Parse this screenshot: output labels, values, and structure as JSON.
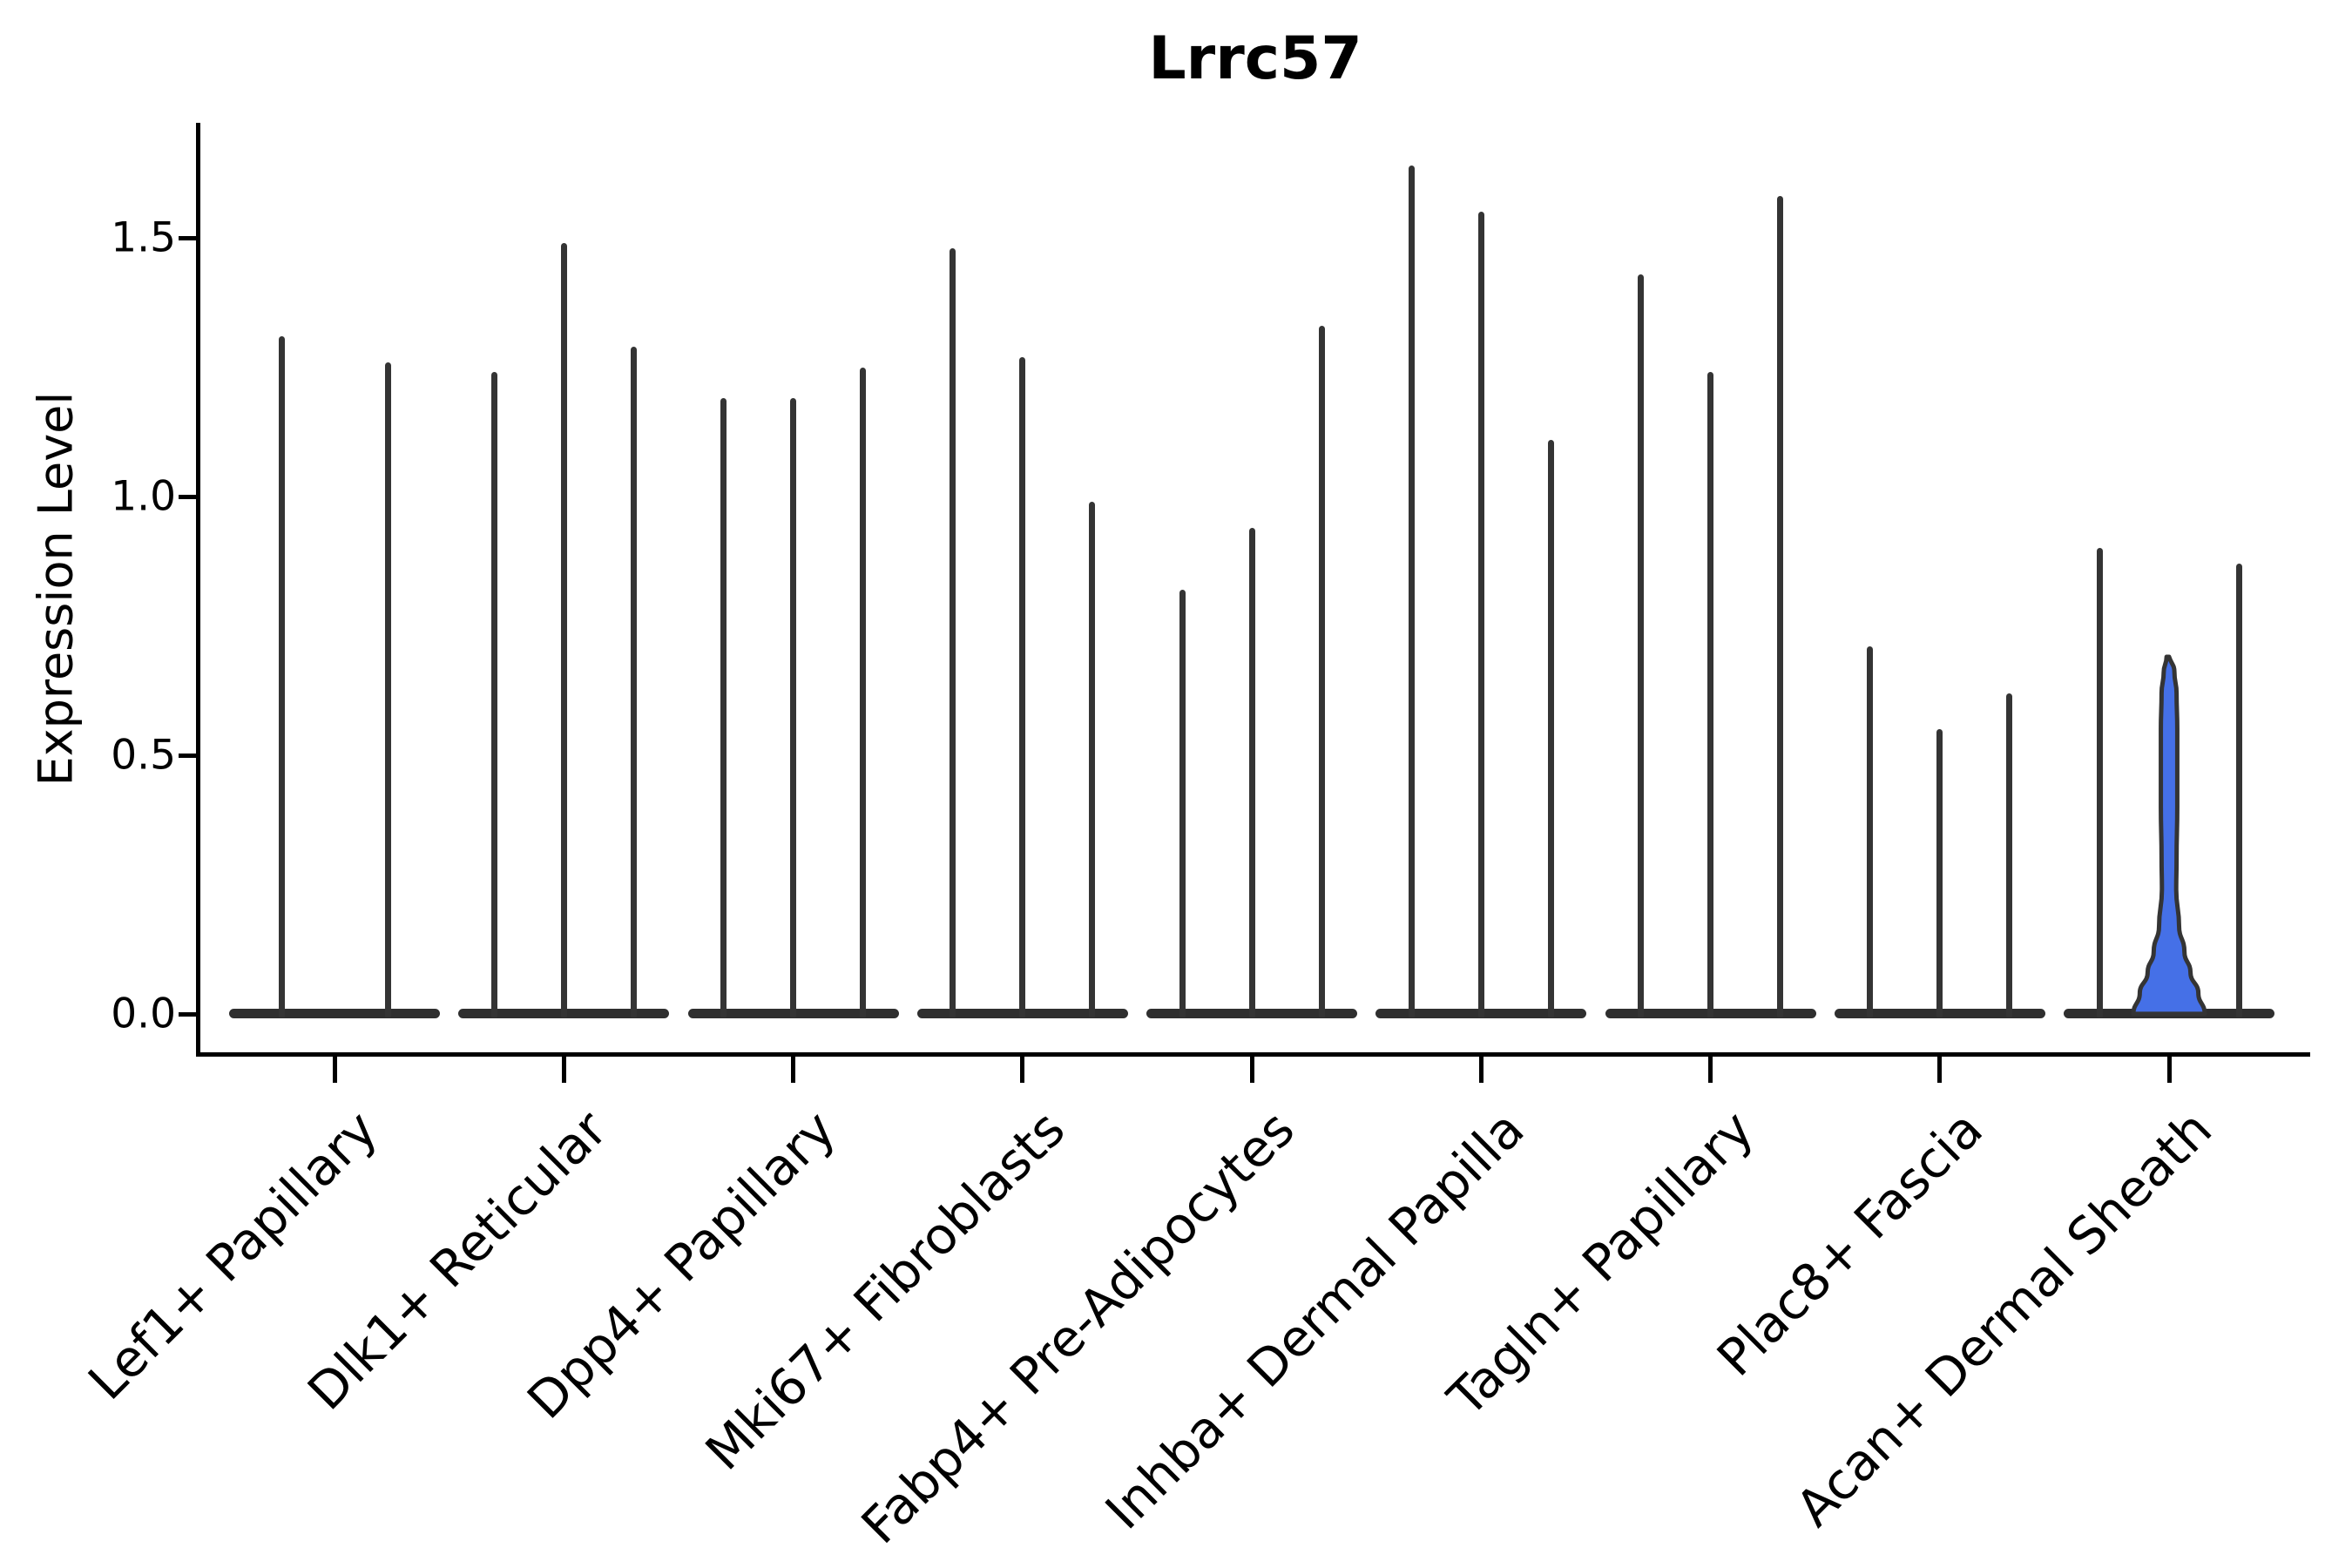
{
  "title": "Lrrc57",
  "y_axis": {
    "label": "Expression Level",
    "ticks": [
      {
        "label": "0.0",
        "value": 0.0
      },
      {
        "label": "0.5",
        "value": 0.5
      },
      {
        "label": "1.0",
        "value": 1.0
      },
      {
        "label": "1.5",
        "value": 1.5
      }
    ]
  },
  "colors": {
    "highlight_fill": "#4570e7",
    "violin_stroke": "#343434",
    "axis": "#000000",
    "background": "#ffffff"
  },
  "chart_data": {
    "type": "violin",
    "title": "Lrrc57",
    "xlabel": "",
    "ylabel": "Expression Level",
    "ylim": [
      -0.08,
      1.72
    ],
    "yticks": [
      0.0,
      0.5,
      1.0,
      1.5
    ],
    "grid": false,
    "legend": false,
    "categories": [
      "Lef1+ Papillary",
      "Dlk1+ Reticular",
      "Dpp4+ Papillary",
      "Mki67+ Fibroblasts",
      "Fabp4+ Pre-Adipocytes",
      "Inhba+ Dermal Papilla",
      "Tagln+ Papillary",
      "Plac8+ Fascia",
      "Acan+ Dermal Sheath"
    ],
    "groups": [
      {
        "category": "Lef1+ Papillary",
        "violins": [
          {
            "max": 1.31
          },
          {
            "max": 1.26
          }
        ]
      },
      {
        "category": "Dlk1+ Reticular",
        "violins": [
          {
            "max": 1.24
          },
          {
            "max": 1.49
          },
          {
            "max": 1.29
          }
        ]
      },
      {
        "category": "Dpp4+ Papillary",
        "violins": [
          {
            "max": 1.19
          },
          {
            "max": 1.19
          },
          {
            "max": 1.25
          }
        ]
      },
      {
        "category": "Mki67+ Fibroblasts",
        "violins": [
          {
            "max": 1.48
          },
          {
            "max": 1.27
          },
          {
            "max": 0.99
          }
        ]
      },
      {
        "category": "Fabp4+ Pre-Adipocytes",
        "violins": [
          {
            "max": 0.82
          },
          {
            "max": 0.94
          },
          {
            "max": 1.33
          }
        ]
      },
      {
        "category": "Inhba+ Dermal Papilla",
        "violins": [
          {
            "max": 1.64
          },
          {
            "max": 1.55
          },
          {
            "max": 1.11
          }
        ]
      },
      {
        "category": "Tagln+ Papillary",
        "violins": [
          {
            "max": 1.43
          },
          {
            "max": 1.24
          },
          {
            "max": 1.58
          }
        ]
      },
      {
        "category": "Plac8+ Fascia",
        "violins": [
          {
            "max": 0.71
          },
          {
            "max": 0.55
          },
          {
            "max": 0.62
          }
        ]
      },
      {
        "category": "Acan+ Dermal Sheath",
        "violins": [
          {
            "max": 0.9
          },
          {
            "max": 0.69,
            "highlight": true,
            "fill": "#4570e7",
            "width_profile": [
              [
                0.69,
                0.07
              ],
              [
                0.66,
                0.15
              ],
              [
                0.62,
                0.21
              ],
              [
                0.55,
                0.23
              ],
              [
                0.4,
                0.23
              ],
              [
                0.3,
                0.21
              ],
              [
                0.24,
                0.2
              ],
              [
                0.17,
                0.28
              ],
              [
                0.12,
                0.43
              ],
              [
                0.08,
                0.6
              ],
              [
                0.04,
                0.82
              ],
              [
                0.0,
                1.0
              ]
            ]
          },
          {
            "max": 0.87
          }
        ]
      }
    ]
  }
}
